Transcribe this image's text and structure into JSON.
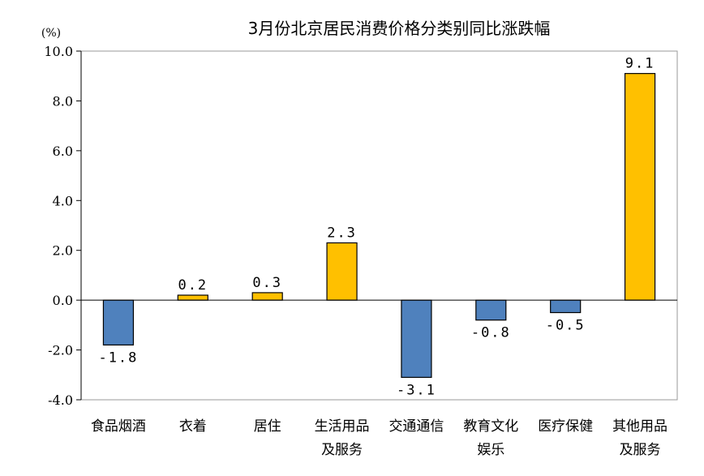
{
  "chart_data": {
    "type": "bar",
    "title": "3月份北京居民消费价格分类别同比涨跌幅",
    "unit": "(%)",
    "categories": [
      [
        "食品烟酒"
      ],
      [
        "衣着"
      ],
      [
        "居住"
      ],
      [
        "生活用品",
        "及服务"
      ],
      [
        "交通通信"
      ],
      [
        "教育文化",
        "娱乐"
      ],
      [
        "医疗保健"
      ],
      [
        "其他用品",
        "及服务"
      ]
    ],
    "values": [
      -1.8,
      0.2,
      0.3,
      2.3,
      -3.1,
      -0.8,
      -0.5,
      9.1
    ],
    "value_labels": [
      "-1.8",
      "0.2",
      "0.3",
      "2.3",
      "-3.1",
      "-0.8",
      "-0.5",
      "9.1"
    ],
    "ylim": [
      -4.0,
      10.0
    ],
    "yticks": [
      10.0,
      8.0,
      6.0,
      4.0,
      2.0,
      0.0,
      -2.0,
      -4.0
    ],
    "ytick_labels": [
      "10.0",
      "8.0",
      "6.0",
      "4.0",
      "2.0",
      "0.0",
      "-2.0",
      "-4.0"
    ],
    "grid": false,
    "legend": "none",
    "colors": {
      "positive": "#FFC000",
      "negative": "#4F81BD",
      "bar_border": "#000000",
      "axis": "#000000",
      "frame": "#9a9a9a"
    }
  }
}
